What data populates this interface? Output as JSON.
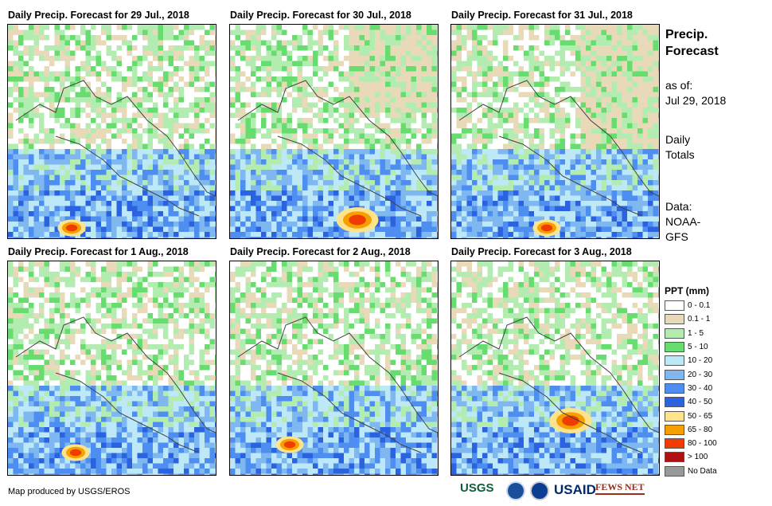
{
  "panels": [
    {
      "title": "Daily Precip. Forecast for 29 Jul., 2018"
    },
    {
      "title": "Daily Precip. Forecast for 30 Jul., 2018"
    },
    {
      "title": "Daily Precip. Forecast for 31 Jul., 2018"
    },
    {
      "title": "Daily Precip. Forecast for 1 Aug., 2018"
    },
    {
      "title": "Daily Precip. Forecast for 2 Aug., 2018"
    },
    {
      "title": "Daily Precip. Forecast for 3 Aug., 2018"
    }
  ],
  "side": {
    "title_line1": "Precip.",
    "title_line2": "Forecast",
    "asof_label": "as of:",
    "asof_date": "Jul 29, 2018",
    "totals_line1": "Daily",
    "totals_line2": "Totals",
    "data_label": "Data:",
    "data_line1": "NOAA-",
    "data_line2": "GFS"
  },
  "legend": {
    "title": "PPT (mm)",
    "items": [
      {
        "label": "0 - 0.1",
        "color": "#ffffff"
      },
      {
        "label": "0.1 - 1",
        "color": "#e8d9b8"
      },
      {
        "label": "1 - 5",
        "color": "#b3ecb0"
      },
      {
        "label": "5 - 10",
        "color": "#66dd6e"
      },
      {
        "label": "10 - 20",
        "color": "#bce8f8"
      },
      {
        "label": "20 - 30",
        "color": "#7fb8f0"
      },
      {
        "label": "30 - 40",
        "color": "#4d8ef0"
      },
      {
        "label": "40 - 50",
        "color": "#2a62e0"
      },
      {
        "label": "50 - 65",
        "color": "#ffe38a"
      },
      {
        "label": "65 - 80",
        "color": "#f5a000"
      },
      {
        "label": "80 - 100",
        "color": "#f03c00"
      },
      {
        "label": "> 100",
        "color": "#b01010"
      },
      {
        "label": "No Data",
        "color": "#999999"
      }
    ]
  },
  "credit": "Map produced by USGS/EROS",
  "logos": {
    "usgs": "USGS",
    "usaid": "USAID",
    "fews": "FEWS NET"
  }
}
